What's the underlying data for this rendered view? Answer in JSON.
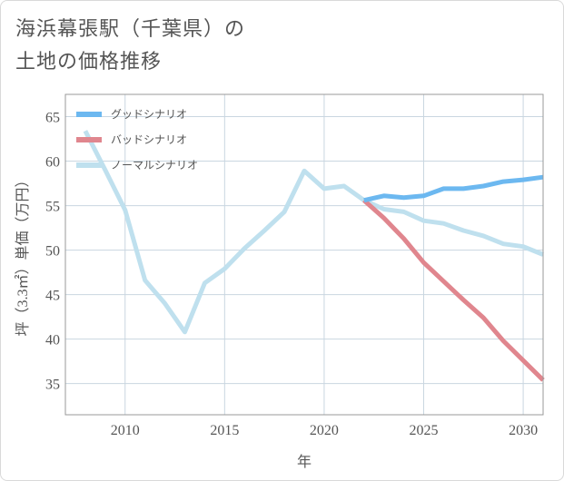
{
  "title": {
    "line1": "海浜幕張駅（千葉県）の",
    "line2": "土地の価格推移"
  },
  "colors": {
    "good": "#6cb8f0",
    "bad": "#e0868e",
    "normal": "#bfe0ee",
    "grid": "#c9d6e0",
    "plot_border": "#999999"
  },
  "chart_data": {
    "type": "line",
    "xlabel": "年",
    "ylabel": "坪（3.3㎡）単価（万円）",
    "xlim": [
      2007,
      2031
    ],
    "ylim": [
      31.5,
      67.5
    ],
    "xticks": [
      2010,
      2015,
      2020,
      2025,
      2030
    ],
    "yticks": [
      35,
      40,
      45,
      50,
      55,
      60,
      65
    ],
    "grid": true,
    "legend": "top-left",
    "series": [
      {
        "name": "グッドシナリオ",
        "key": "good",
        "points": [
          [
            2022,
            55.6
          ],
          [
            2023,
            56.1
          ],
          [
            2024,
            55.9
          ],
          [
            2025,
            56.1
          ],
          [
            2026,
            56.9
          ],
          [
            2027,
            56.9
          ],
          [
            2028,
            57.2
          ],
          [
            2029,
            57.7
          ],
          [
            2030,
            57.9
          ],
          [
            2031,
            58.2
          ]
        ]
      },
      {
        "name": "バッドシナリオ",
        "key": "bad",
        "points": [
          [
            2022,
            55.6
          ],
          [
            2023,
            53.6
          ],
          [
            2024,
            51.3
          ],
          [
            2025,
            48.6
          ],
          [
            2026,
            46.5
          ],
          [
            2027,
            44.4
          ],
          [
            2028,
            42.4
          ],
          [
            2029,
            39.8
          ],
          [
            2030,
            37.6
          ],
          [
            2031,
            35.4
          ]
        ]
      },
      {
        "name": "ノーマルシナリオ",
        "key": "normal",
        "points": [
          [
            2008,
            63.4
          ],
          [
            2009,
            59.0
          ],
          [
            2010,
            54.5
          ],
          [
            2011,
            46.6
          ],
          [
            2012,
            44.0
          ],
          [
            2013,
            40.8
          ],
          [
            2014,
            46.3
          ],
          [
            2015,
            47.9
          ],
          [
            2016,
            50.2
          ],
          [
            2017,
            52.2
          ],
          [
            2018,
            54.3
          ],
          [
            2019,
            58.9
          ],
          [
            2020,
            56.9
          ],
          [
            2021,
            57.2
          ],
          [
            2022,
            55.6
          ],
          [
            2023,
            54.6
          ],
          [
            2024,
            54.3
          ],
          [
            2025,
            53.3
          ],
          [
            2026,
            53.0
          ],
          [
            2027,
            52.2
          ],
          [
            2028,
            51.6
          ],
          [
            2029,
            50.7
          ],
          [
            2030,
            50.4
          ],
          [
            2031,
            49.5
          ]
        ]
      }
    ]
  }
}
